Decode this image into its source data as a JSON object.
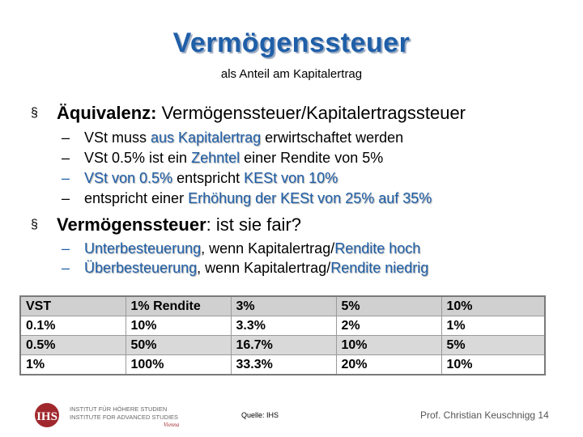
{
  "title": "Vermögenssteuer",
  "subtitle": "als Anteil am Kapitalertrag",
  "bullet1": {
    "marker": "§",
    "term": "Äquivalenz:",
    "rest": " Vermögenssteuer/Kapitalertragssteuer"
  },
  "sub1": [
    {
      "dash": "–",
      "a": "VSt muss ",
      "b": "aus Kapitalertrag",
      "c": " erwirtschaftet werden"
    },
    {
      "dash": "–",
      "a": "VSt 0.5% ist ein ",
      "b": "Zehntel",
      "c": " einer Rendite von 5%"
    },
    {
      "dash": "–",
      "a": "",
      "b": "VSt von 0.5%",
      "c": " entspricht ",
      "d": "KESt von 10%"
    },
    {
      "dash": "–",
      "a": "entspricht einer ",
      "b": "Erhöhung der KESt von 25% auf 35%",
      "c": ""
    }
  ],
  "bullet2": {
    "marker": "§",
    "term": "Vermögenssteuer",
    "rest": ": ist sie fair?"
  },
  "sub2": [
    {
      "dash": "–",
      "a": "Unterbesteuerung",
      "b": ", wenn Kapitalertrag/",
      "c": "Rendite hoch"
    },
    {
      "dash": "–",
      "a": "Überbesteuerung",
      "b": ", wenn Kapitalertrag/",
      "c": "Rendite niedrig"
    }
  ],
  "table": {
    "header": [
      "VST",
      "1% Rendite",
      "3%",
      "5%",
      "10%"
    ],
    "rows": [
      [
        "0.1%",
        "10%",
        "3.3%",
        "2%",
        "1%"
      ],
      [
        "0.5%",
        "50%",
        "16.7%",
        "10%",
        "5%"
      ],
      [
        "1%",
        "100%",
        "33.3%",
        "20%",
        "10%"
      ]
    ]
  },
  "logo": {
    "letters": "IHS",
    "line1": "INSTITUT FÜR HÖHERE STUDIEN",
    "line2": "INSTITUTE FOR ADVANCED STUDIES",
    "city": "Vienna"
  },
  "source": "Quelle: IHS",
  "footer": "Prof. Christian Keuschnigg 14",
  "colors": {
    "accent": "#1f5fa8",
    "logo_red": "#a0282d"
  }
}
